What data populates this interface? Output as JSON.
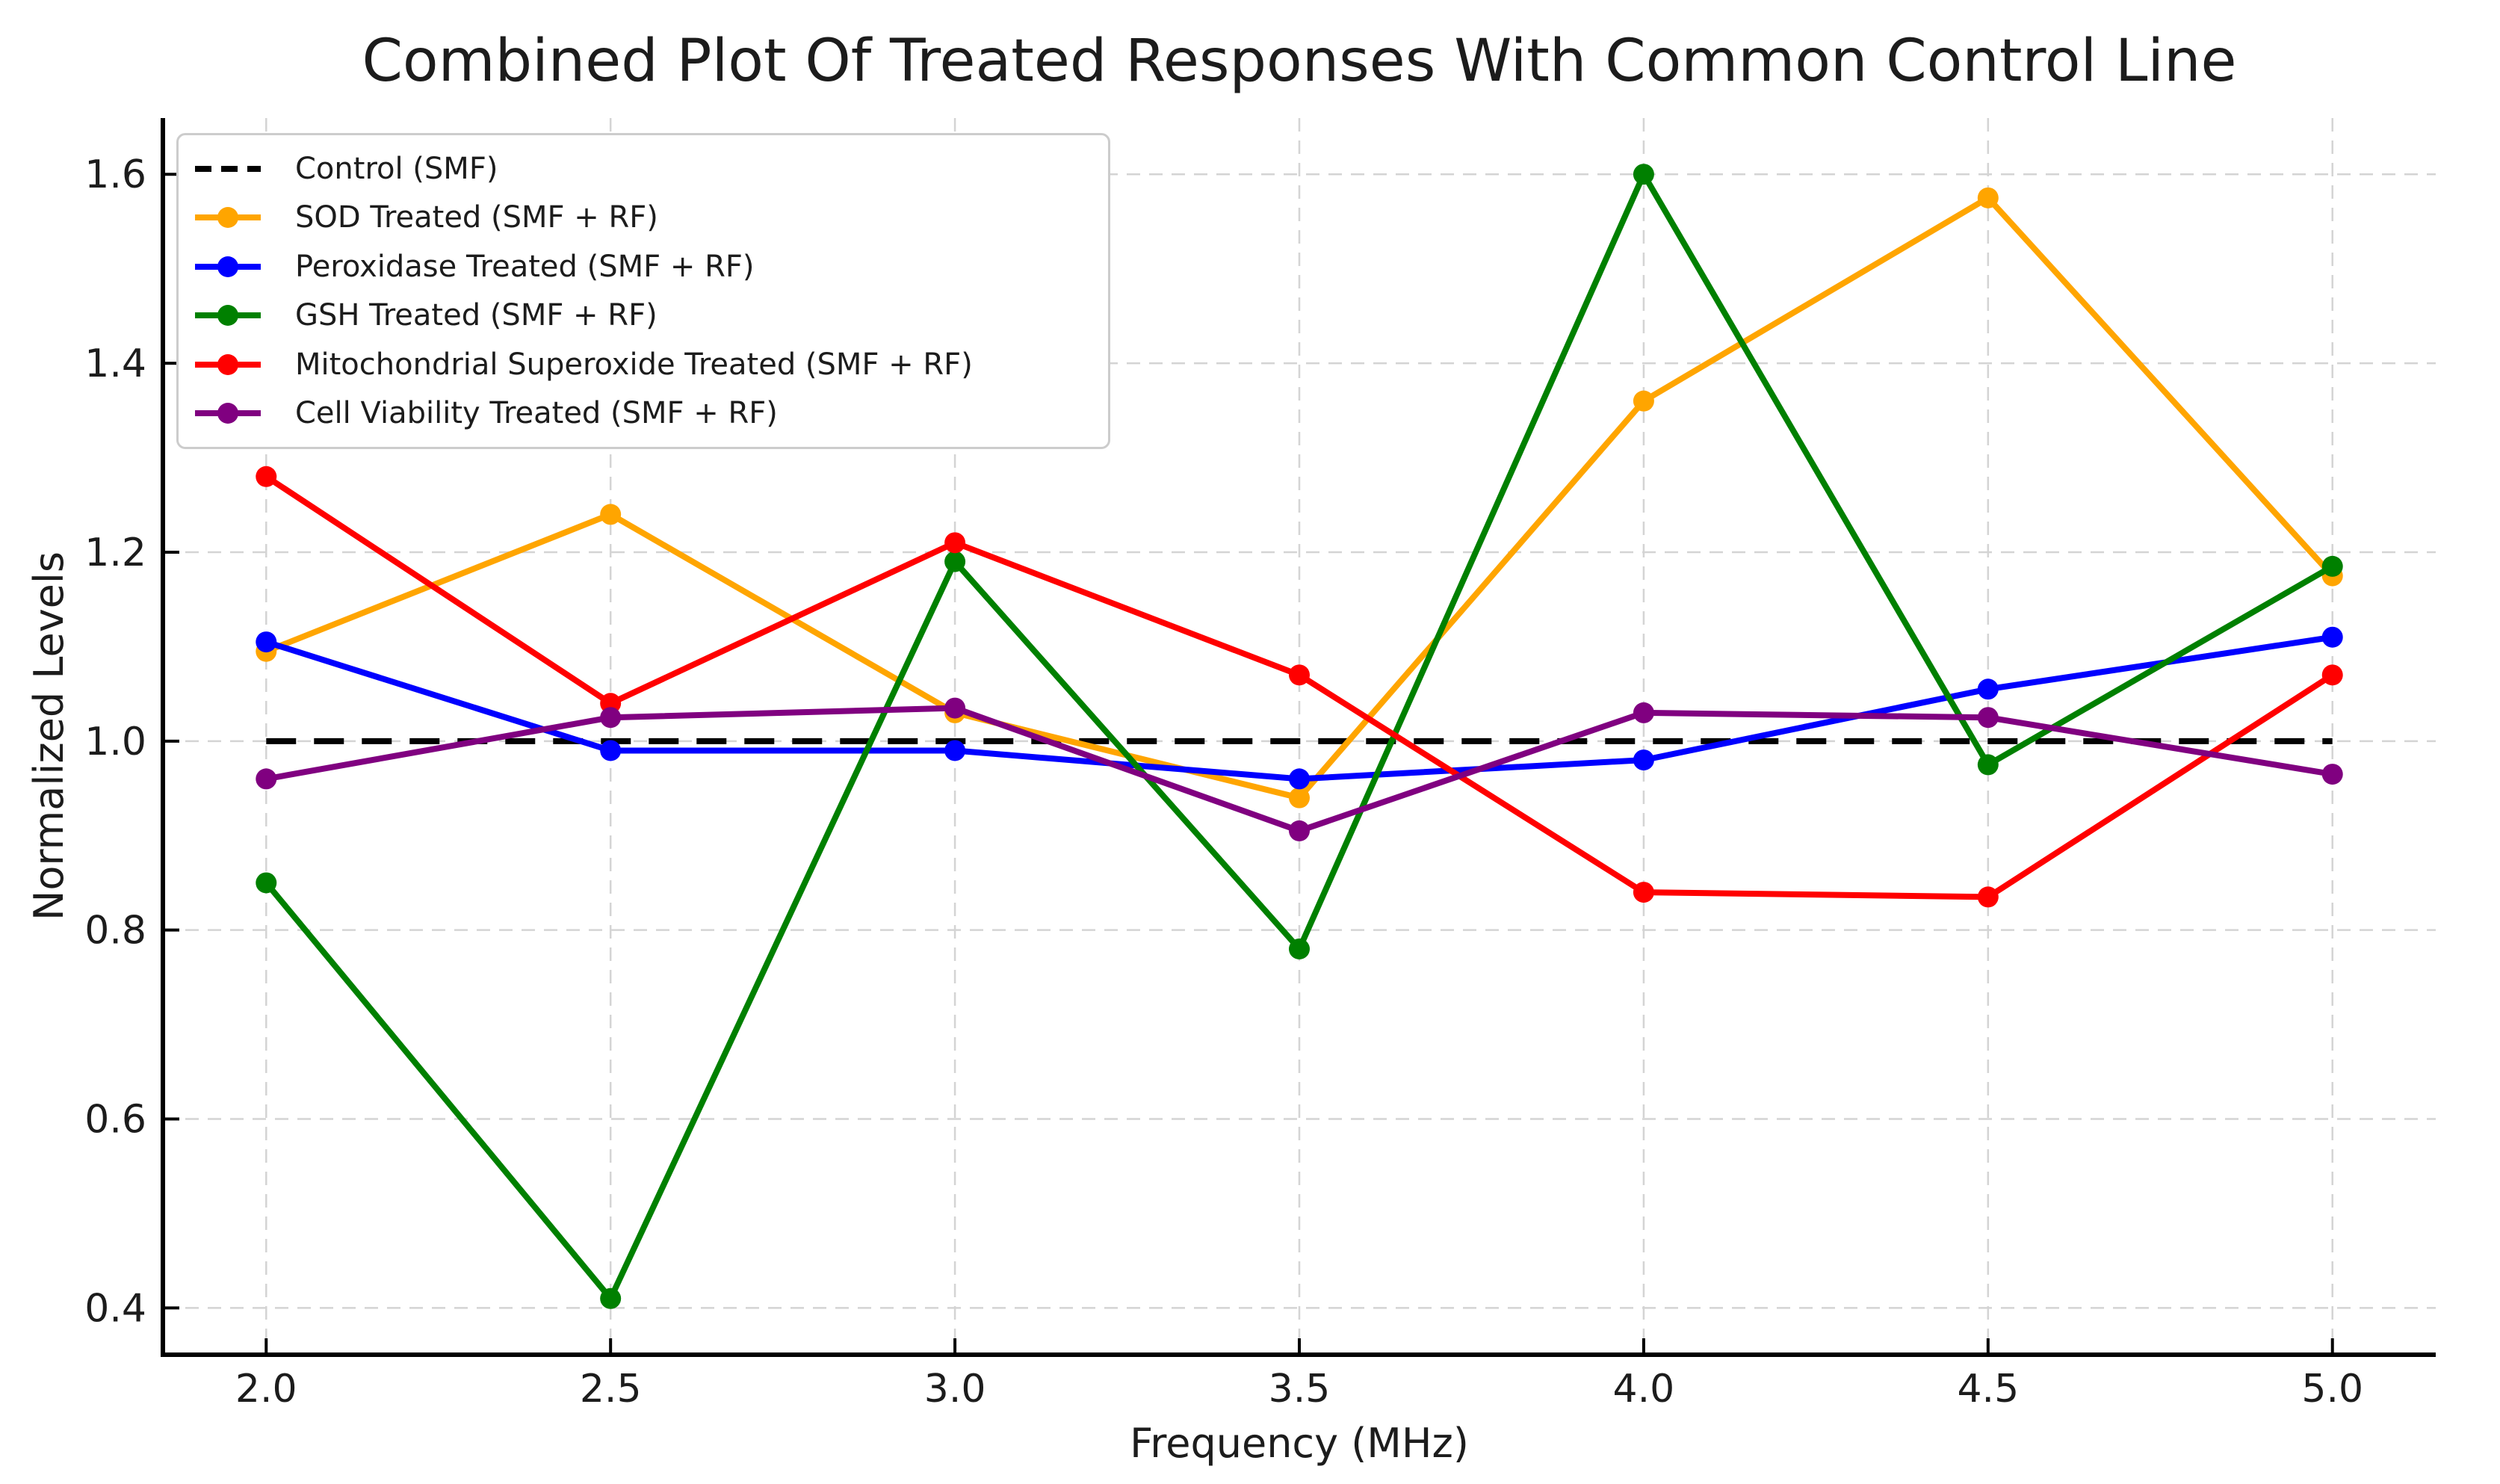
{
  "chart_data": {
    "type": "line",
    "title": "Combined Plot Of Treated Responses With Common Control Line",
    "xlabel": "Frequency (MHz)",
    "ylabel": "Normalized Levels",
    "x": [
      2.0,
      2.5,
      3.0,
      3.5,
      4.0,
      4.5,
      5.0
    ],
    "xtick_labels": [
      "2.0",
      "2.5",
      "3.0",
      "3.5",
      "4.0",
      "4.5",
      "5.0"
    ],
    "ytick_labels": [
      "0.4",
      "0.6",
      "0.8",
      "1.0",
      "1.2",
      "1.4",
      "1.6"
    ],
    "xlim": [
      1.85,
      5.15
    ],
    "ylim": [
      0.3505,
      1.6595
    ],
    "grid": true,
    "legend_position": "upper left",
    "colors": {
      "grid": "#d4d4d4",
      "spine": "#000000",
      "text": "#1c1c1c",
      "control": "#000000",
      "sod": "#FFA500",
      "peroxidase": "#0000FF",
      "gsh": "#008000",
      "mitochondrial": "#FF0000",
      "cell_viability": "#800080"
    },
    "series": [
      {
        "name": "Control (SMF)",
        "color": "#000000",
        "dashed": true,
        "marker": false,
        "values": [
          1.0,
          1.0,
          1.0,
          1.0,
          1.0,
          1.0,
          1.0
        ]
      },
      {
        "name": "SOD Treated (SMF + RF)",
        "color": "#FFA500",
        "dashed": false,
        "marker": true,
        "values": [
          1.095,
          1.24,
          1.03,
          0.94,
          1.36,
          1.575,
          1.175
        ]
      },
      {
        "name": "Peroxidase Treated (SMF + RF)",
        "color": "#0000FF",
        "dashed": false,
        "marker": true,
        "values": [
          1.105,
          0.99,
          0.99,
          0.96,
          0.98,
          1.055,
          1.11
        ]
      },
      {
        "name": "GSH Treated (SMF + RF)",
        "color": "#008000",
        "dashed": false,
        "marker": true,
        "values": [
          0.85,
          0.41,
          1.19,
          0.78,
          1.6,
          0.975,
          1.185
        ]
      },
      {
        "name": "Mitochondrial Superoxide Treated (SMF + RF)",
        "color": "#FF0000",
        "dashed": false,
        "marker": true,
        "values": [
          1.28,
          1.04,
          1.21,
          1.07,
          0.84,
          0.835,
          1.07
        ]
      },
      {
        "name": "Cell Viability Treated (SMF + RF)",
        "color": "#800080",
        "dashed": false,
        "marker": true,
        "values": [
          0.96,
          1.025,
          1.035,
          0.905,
          1.03,
          1.025,
          0.965
        ]
      }
    ]
  }
}
